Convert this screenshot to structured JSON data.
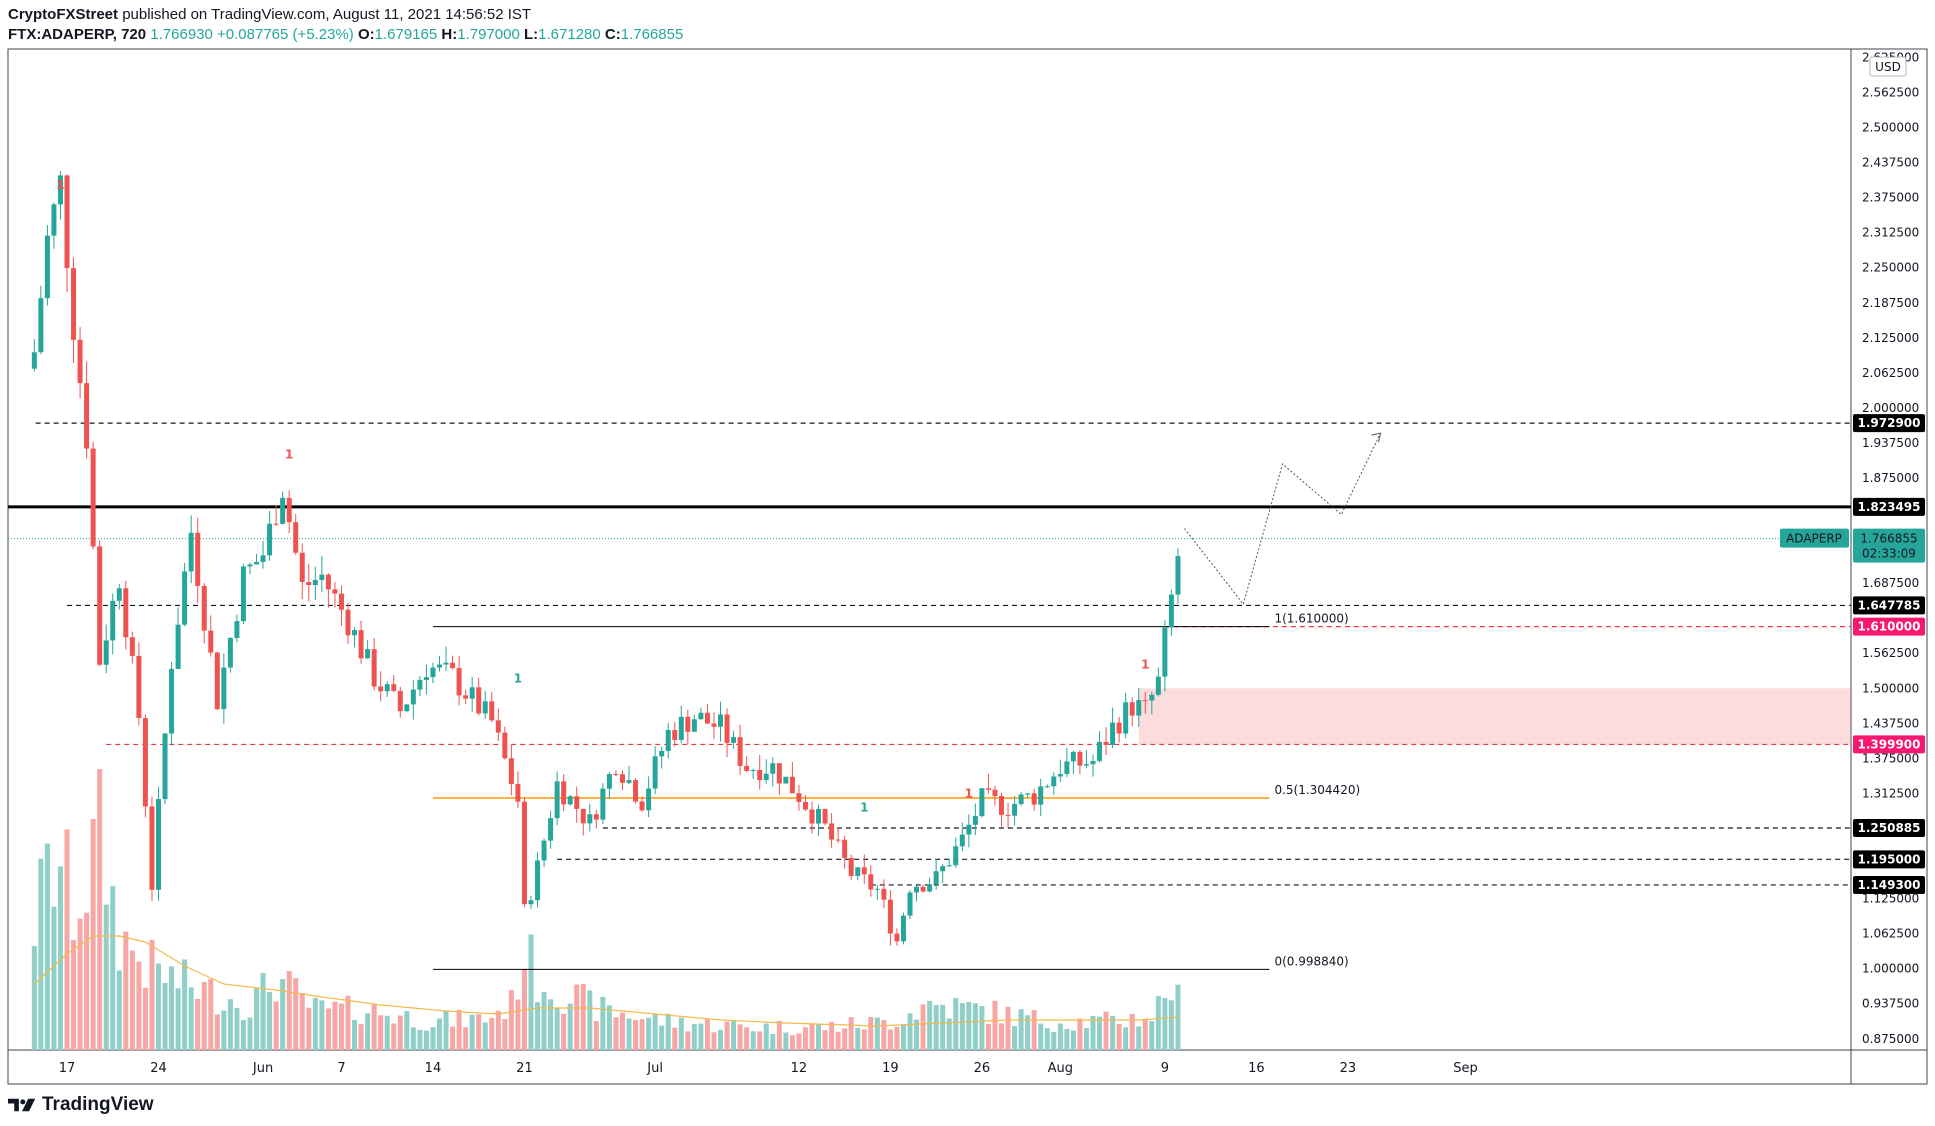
{
  "header": {
    "publisher": "CryptoFXStreet",
    "published_text": " published on TradingView.com, August 11, 2021 14:56:52 IST",
    "symbol": "FTX:ADAPERP, 720",
    "last": "1.766930",
    "change": "+0.087765 (+5.23%)",
    "o_label": "O:",
    "o_value": "1.679165",
    "h_label": "H:",
    "h_value": "1.797000",
    "l_label": "L:",
    "l_value": "1.671280",
    "c_label": "C:",
    "c_value": "1.766855"
  },
  "footer": {
    "brand": "TradingView"
  },
  "chart_data": {
    "type": "candlestick",
    "symbol": "ADAPERP",
    "currency": "USD",
    "y_ticks": [
      "2.500000",
      "2.437500",
      "2.375000",
      "2.312500",
      "2.250000",
      "2.187500",
      "2.125000",
      "2.062500",
      "2.000000",
      "1.937500",
      "1.875000",
      "1.687500",
      "1.562500",
      "1.500000",
      "1.437500",
      "1.375000",
      "1.312500",
      "1.125000",
      "1.062500",
      "1.000000",
      "0.937500",
      "0.875000"
    ],
    "y_tick_values": [
      2.5,
      2.4375,
      2.375,
      2.3125,
      2.25,
      2.1875,
      2.125,
      2.0625,
      2.0,
      1.9375,
      1.875,
      1.6875,
      1.5625,
      1.5,
      1.4375,
      1.375,
      1.3125,
      1.125,
      1.0625,
      1.0,
      0.9375,
      0.875
    ],
    "y_ticks_partial": [
      {
        "label": "2.562500",
        "value": 2.5625
      },
      {
        "label": "2.625000",
        "value": 2.625
      }
    ],
    "ylim": [
      0.855,
      2.64
    ],
    "x_ticks": [
      {
        "label": "17",
        "day": 17
      },
      {
        "label": "24",
        "day": 24
      },
      {
        "label": "Jun",
        "day": 32
      },
      {
        "label": "7",
        "day": 38
      },
      {
        "label": "14",
        "day": 45
      },
      {
        "label": "21",
        "day": 52
      },
      {
        "label": "Jul",
        "day": 62
      },
      {
        "label": "12",
        "day": 73
      },
      {
        "label": "19",
        "day": 80
      },
      {
        "label": "26",
        "day": 87
      },
      {
        "label": "Aug",
        "day": 93
      },
      {
        "label": "9",
        "day": 101
      },
      {
        "label": "16",
        "day": 108
      },
      {
        "label": "23",
        "day": 115
      },
      {
        "label": "Sep",
        "day": 124
      }
    ],
    "x_unit": "days from May 1, 2021",
    "anchors_day": [
      [
        14.5,
        2.1
      ],
      [
        15.5,
        2.3
      ],
      [
        16.5,
        2.4
      ],
      [
        17.5,
        2.15
      ],
      [
        18.5,
        1.95
      ],
      [
        19.5,
        1.55
      ],
      [
        21.0,
        1.7
      ],
      [
        22.5,
        1.45
      ],
      [
        23.5,
        1.15
      ],
      [
        25.0,
        1.55
      ],
      [
        26.5,
        1.78
      ],
      [
        28.5,
        1.48
      ],
      [
        30.5,
        1.7
      ],
      [
        32.0,
        1.74
      ],
      [
        33.5,
        1.86
      ],
      [
        35.0,
        1.68
      ],
      [
        36.5,
        1.7
      ],
      [
        38.5,
        1.62
      ],
      [
        40.5,
        1.52
      ],
      [
        42.5,
        1.46
      ],
      [
        44.5,
        1.54
      ],
      [
        46.5,
        1.52
      ],
      [
        49.5,
        1.44
      ],
      [
        51.5,
        1.3
      ],
      [
        52.0,
        1.1
      ],
      [
        53.0,
        1.18
      ],
      [
        54.5,
        1.33
      ],
      [
        57.0,
        1.26
      ],
      [
        59.0,
        1.37
      ],
      [
        61.0,
        1.3
      ],
      [
        63.0,
        1.42
      ],
      [
        65.0,
        1.45
      ],
      [
        67.0,
        1.43
      ],
      [
        69.0,
        1.36
      ],
      [
        71.0,
        1.36
      ],
      [
        73.0,
        1.31
      ],
      [
        75.0,
        1.25
      ],
      [
        77.0,
        1.17
      ],
      [
        79.0,
        1.14
      ],
      [
        80.5,
        1.05
      ],
      [
        81.5,
        1.15
      ],
      [
        83.5,
        1.16
      ],
      [
        85.5,
        1.23
      ],
      [
        87.0,
        1.3
      ],
      [
        89.0,
        1.29
      ],
      [
        91.0,
        1.31
      ],
      [
        93.0,
        1.36
      ],
      [
        95.5,
        1.37
      ],
      [
        97.0,
        1.43
      ],
      [
        98.5,
        1.47
      ],
      [
        99.5,
        1.46
      ],
      [
        100.5,
        1.51
      ],
      [
        101.5,
        1.66
      ],
      [
        102.2,
        1.767
      ]
    ],
    "volume_anchors_day": [
      [
        14.5,
        0.45
      ],
      [
        15.5,
        0.6
      ],
      [
        16.5,
        0.65
      ],
      [
        17.5,
        0.5
      ],
      [
        18.5,
        0.6
      ],
      [
        19.5,
        0.75
      ],
      [
        21.0,
        0.4
      ],
      [
        23.0,
        0.3
      ],
      [
        25.0,
        0.25
      ],
      [
        28.0,
        0.2
      ],
      [
        31.0,
        0.16
      ],
      [
        33.0,
        0.25
      ],
      [
        36.0,
        0.14
      ],
      [
        40.0,
        0.14
      ],
      [
        45.0,
        0.1
      ],
      [
        49.0,
        0.11
      ],
      [
        51.0,
        0.16
      ],
      [
        52.0,
        0.35
      ],
      [
        53.0,
        0.25
      ],
      [
        55.0,
        0.2
      ],
      [
        58.0,
        0.14
      ],
      [
        63.0,
        0.1
      ],
      [
        70.0,
        0.08
      ],
      [
        75.0,
        0.08
      ],
      [
        80.0,
        0.1
      ],
      [
        83.0,
        0.16
      ],
      [
        87.0,
        0.14
      ],
      [
        92.0,
        0.1
      ],
      [
        97.0,
        0.1
      ],
      [
        100.0,
        0.12
      ],
      [
        101.5,
        0.23
      ],
      [
        102.2,
        0.15
      ]
    ],
    "volume_ma_anchors_day": [
      [
        14.5,
        0.22
      ],
      [
        17.0,
        0.32
      ],
      [
        19.0,
        0.38
      ],
      [
        21.0,
        0.38
      ],
      [
        23.0,
        0.36
      ],
      [
        26.0,
        0.28
      ],
      [
        29.0,
        0.22
      ],
      [
        33.0,
        0.2
      ],
      [
        36.0,
        0.18
      ],
      [
        41.0,
        0.15
      ],
      [
        46.0,
        0.13
      ],
      [
        50.0,
        0.12
      ],
      [
        53.0,
        0.14
      ],
      [
        57.0,
        0.14
      ],
      [
        62.0,
        0.12
      ],
      [
        67.0,
        0.1
      ],
      [
        72.0,
        0.09
      ],
      [
        79.0,
        0.08
      ],
      [
        84.0,
        0.09
      ],
      [
        89.0,
        0.1
      ],
      [
        94.0,
        0.1
      ],
      [
        99.0,
        0.1
      ],
      [
        102.2,
        0.11
      ]
    ],
    "horizontal_levels": [
      {
        "value": 1.9729,
        "label": "1.972900",
        "style": "dashed",
        "color": "#131722",
        "badge": "#000000",
        "from_day": 14.6
      },
      {
        "value": 1.823495,
        "label": "1.823495",
        "style": "solid",
        "color": "#000000",
        "badge": "#000000",
        "from_day": 14.0
      },
      {
        "value": 1.647785,
        "label": "1.647785",
        "style": "dashed",
        "color": "#131722",
        "badge": "#000000",
        "from_day": 17.0
      },
      {
        "value": 1.61,
        "label": "1.610000",
        "style": "dashed",
        "color": "#f23645",
        "badge": "#f7176e",
        "from_day": 101.0
      },
      {
        "value": 1.3999,
        "label": "1.399900",
        "style": "dashed",
        "color": "#f23645",
        "badge": "#f7176e",
        "from_day": 20.0
      },
      {
        "value": 1.250885,
        "label": "1.250885",
        "style": "dashed",
        "color": "#131722",
        "badge": "#000000",
        "from_day": 58.0
      },
      {
        "value": 1.195,
        "label": "1.195000",
        "style": "dashed",
        "color": "#131722",
        "badge": "#000000",
        "from_day": 54.5
      },
      {
        "value": 1.1493,
        "label": "1.149300",
        "style": "dashed",
        "color": "#131722",
        "badge": "#000000",
        "from_day": 78.5
      }
    ],
    "current_price": {
      "value": 1.766855,
      "symbol_label": "ADAPERP",
      "price_label": "1.766855",
      "countdown": "02:33:09",
      "color": "#26a69a"
    },
    "fibonacci": [
      {
        "value": 1.61,
        "label": "1(1.610000)",
        "color": "#000000",
        "from_day": 45.0,
        "to_day": 109.0
      },
      {
        "value": 1.30442,
        "label": "0.5(1.304420)",
        "color": "#ff9800",
        "from_day": 45.0,
        "to_day": 109.0
      },
      {
        "value": 0.99884,
        "label": "0(0.998840)",
        "color": "#000000",
        "from_day": 45.0,
        "to_day": 109.0
      }
    ],
    "demand_zone": {
      "from_day": 99.0,
      "to_day": 127.2,
      "top": 1.5,
      "bottom": 1.4,
      "color": "#fcd6d6"
    },
    "projection_path": [
      [
        102.5,
        1.785
      ],
      [
        107.0,
        1.65
      ],
      [
        110.0,
        1.9
      ],
      [
        114.5,
        1.81
      ],
      [
        117.5,
        1.955
      ]
    ],
    "td_signals": [
      {
        "day": 16.5,
        "price": 2.39,
        "label": "1",
        "color": "#ef5350"
      },
      {
        "day": 34.0,
        "price": 1.91,
        "label": "1",
        "color": "#ef5350"
      },
      {
        "day": 51.5,
        "price": 1.51,
        "label": "1",
        "color": "#26a69a"
      },
      {
        "day": 78.0,
        "price": 1.28,
        "label": "1",
        "color": "#26a69a"
      },
      {
        "day": 86.0,
        "price": 1.305,
        "label": "1",
        "color": "#ef5350"
      },
      {
        "day": 99.5,
        "price": 1.535,
        "label": "1",
        "color": "#ef5350"
      }
    ],
    "colors": {
      "up": "#26a69a",
      "down": "#ef5350",
      "vol_up": "#8fcfc8",
      "vol_down": "#f6a7a5",
      "vol_ma": "#f3b94a"
    }
  }
}
